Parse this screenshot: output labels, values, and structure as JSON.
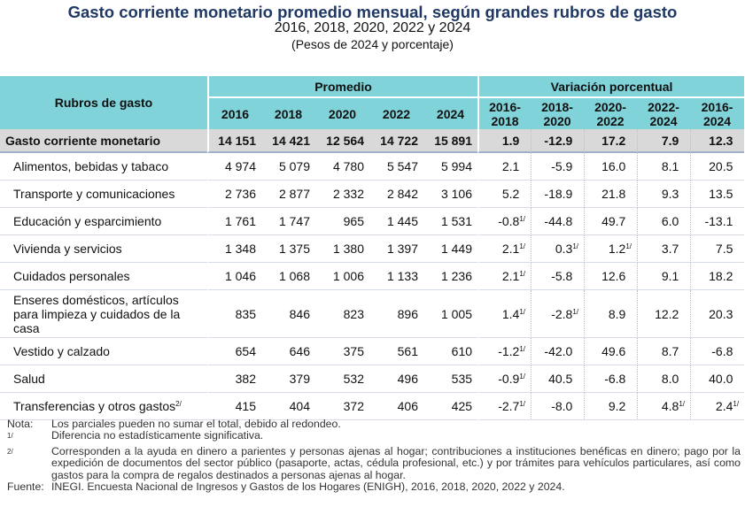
{
  "header": {
    "title": "Gasto corriente monetario promedio mensual, según grandes rubros de gasto",
    "subtitle": "2016, 2018, 2020, 2022 y 2024",
    "units": "(Pesos de 2024 y porcentaje)"
  },
  "table": {
    "col_label": "Rubros de gasto",
    "group_promedio": "Promedio",
    "group_variacion": "Variación porcentual",
    "years": [
      "2016",
      "2018",
      "2020",
      "2022",
      "2024"
    ],
    "periods": [
      [
        "2016-",
        "2018"
      ],
      [
        "2018-",
        "2020"
      ],
      [
        "2020-",
        "2022"
      ],
      [
        "2022-",
        "2024"
      ],
      [
        "2016-",
        "2024"
      ]
    ],
    "rows": [
      {
        "label": "Gasto corriente monetario",
        "values": [
          "14 151",
          "14 421",
          "12 564",
          "14 722",
          "15 891"
        ],
        "variation": [
          "1.9",
          "-12.9",
          "17.2",
          "7.9",
          "12.3"
        ],
        "notes": [
          "",
          "",
          "",
          "",
          ""
        ],
        "label_note": ""
      },
      {
        "label": "Alimentos, bebidas y tabaco",
        "values": [
          "4 974",
          "5 079",
          "4 780",
          "5 547",
          "5 994"
        ],
        "variation": [
          "2.1",
          "-5.9",
          "16.0",
          "8.1",
          "20.5"
        ],
        "notes": [
          "",
          "",
          "",
          "",
          ""
        ],
        "label_note": ""
      },
      {
        "label": "Transporte y comunicaciones",
        "values": [
          "2 736",
          "2 877",
          "2 332",
          "2 842",
          "3 106"
        ],
        "variation": [
          "5.2",
          "-18.9",
          "21.8",
          "9.3",
          "13.5"
        ],
        "notes": [
          "",
          "",
          "",
          "",
          ""
        ],
        "label_note": ""
      },
      {
        "label": "Educación y esparcimiento",
        "values": [
          "1 761",
          "1 747",
          "965",
          "1 445",
          "1 531"
        ],
        "variation": [
          "-0.8",
          "-44.8",
          "49.7",
          "6.0",
          "-13.1"
        ],
        "notes": [
          "1/",
          "",
          "",
          "",
          ""
        ],
        "label_note": ""
      },
      {
        "label": "Vivienda y servicios",
        "values": [
          "1 348",
          "1 375",
          "1 380",
          "1 397",
          "1 449"
        ],
        "variation": [
          "2.1",
          "0.3",
          "1.2",
          "3.7",
          "7.5"
        ],
        "notes": [
          "1/",
          "1/",
          "1/",
          "",
          ""
        ],
        "label_note": ""
      },
      {
        "label": "Cuidados personales",
        "values": [
          "1 046",
          "1 068",
          "1 006",
          "1 133",
          "1 236"
        ],
        "variation": [
          "2.1",
          "-5.8",
          "12.6",
          "9.1",
          "18.2"
        ],
        "notes": [
          "1/",
          "",
          "",
          "",
          ""
        ],
        "label_note": ""
      },
      {
        "label": "Enseres domésticos, artículos para limpieza y cuidados de la casa",
        "values": [
          "835",
          "846",
          "823",
          "896",
          "1 005"
        ],
        "variation": [
          "1.4",
          "-2.8",
          "8.9",
          "12.2",
          "20.3"
        ],
        "notes": [
          "1/",
          "1/",
          "",
          "",
          ""
        ],
        "label_note": ""
      },
      {
        "label": "Vestido y calzado",
        "values": [
          "654",
          "646",
          "375",
          "561",
          "610"
        ],
        "variation": [
          "-1.2",
          "-42.0",
          "49.6",
          "8.7",
          "-6.8"
        ],
        "notes": [
          "1/",
          "",
          "",
          "",
          ""
        ],
        "label_note": ""
      },
      {
        "label": "Salud",
        "values": [
          "382",
          "379",
          "532",
          "496",
          "535"
        ],
        "variation": [
          "-0.9",
          "40.5",
          "-6.8",
          "8.0",
          "40.0"
        ],
        "notes": [
          "1/",
          "",
          "",
          "",
          ""
        ],
        "label_note": ""
      },
      {
        "label": "Transferencias y otros gastos",
        "values": [
          "415",
          "404",
          "372",
          "406",
          "425"
        ],
        "variation": [
          "-2.7",
          "-8.0",
          "9.2",
          "4.8",
          "2.4"
        ],
        "notes": [
          "1/",
          "",
          "",
          "1/",
          "1/"
        ],
        "label_note": "2/"
      }
    ]
  },
  "footnotes": {
    "nota_key": "Nota:",
    "nota_text": "Los parciales pueden no sumar el total, debido al redondeo.",
    "n1_key": "1/",
    "n1_text": "Diferencia no estadísticamente significativa.",
    "n2_key": "2/",
    "n2_text": "Corresponden a la ayuda en dinero a parientes y personas ajenas al hogar; contribuciones a instituciones benéficas en dinero; pago por la expedición de documentos del sector público (pasaporte, actas, cédula profesional, etc.) y por trámites para vehículos particulares, así como gastos para la compra de regalos destinados a personas ajenas al hogar.",
    "fuente_key": "Fuente:",
    "fuente_text": "INEGI. Encuesta Nacional de Ingresos y Gastos de los Hogares (ENIGH), 2016, 2018, 2020, 2022 y 2024."
  }
}
